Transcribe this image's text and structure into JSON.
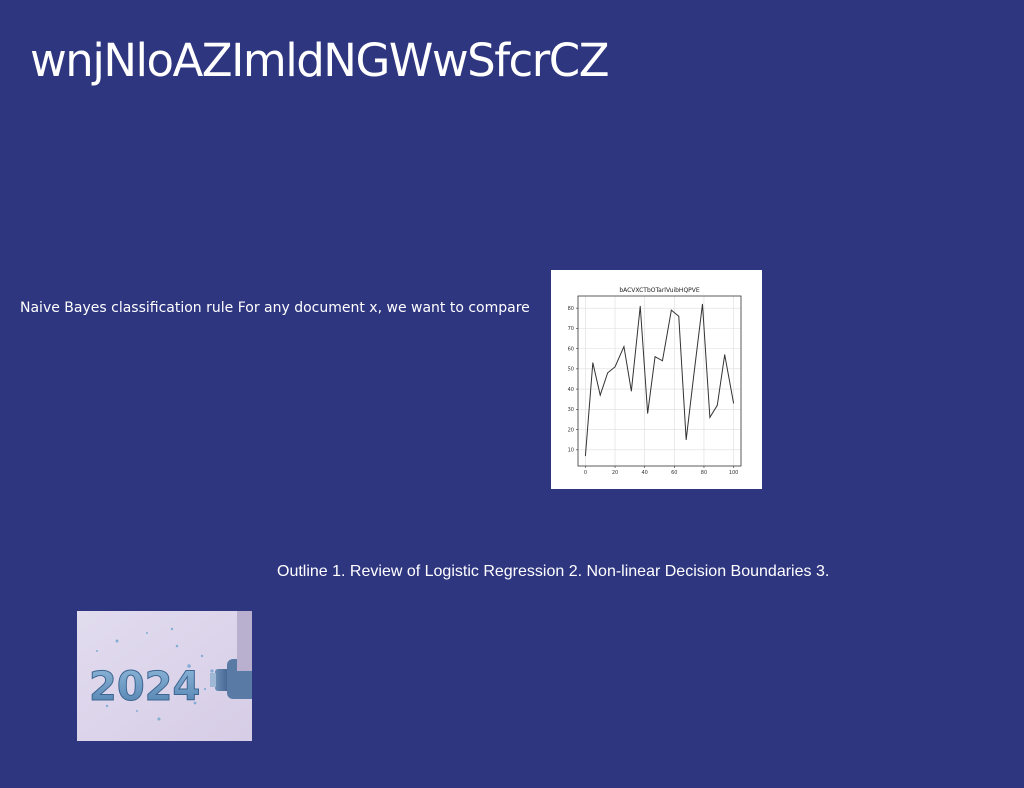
{
  "slide": {
    "title": "wnjNloAZImldNGWwSfcrCZ",
    "text_1": "Naive Bayes classification rule For any document x, we want to compare",
    "text_2": "Outline 1. Review of Logistic Regression 2. Non-linear Decision Boundaries 3.",
    "photo": {
      "caption_digits": "2024",
      "icon": "new-year-2024-bottle-photo"
    }
  },
  "colors": {
    "background": "#2f3680",
    "text": "#ffffff",
    "line": "#333333",
    "grid": "#dddddd"
  },
  "chart_data": {
    "type": "line",
    "title": "bACVXCTbOTarlVuibHQPVE",
    "xlabel": "",
    "ylabel": "",
    "grid": true,
    "xlim": [
      -5,
      105
    ],
    "ylim": [
      2,
      86
    ],
    "xticks": [
      0,
      20,
      40,
      60,
      80,
      100
    ],
    "yticks": [
      10,
      20,
      30,
      40,
      50,
      60,
      70,
      80
    ],
    "series": [
      {
        "x": [
          0,
          5,
          10,
          15,
          20,
          26,
          31,
          37,
          42,
          47,
          52,
          58,
          63,
          68,
          73,
          79,
          84,
          89,
          94,
          100
        ],
        "y": [
          7,
          53,
          37,
          48,
          51,
          61,
          39,
          81,
          28,
          56,
          54,
          79,
          76,
          15,
          46,
          82,
          26,
          32,
          57,
          33
        ]
      }
    ]
  }
}
